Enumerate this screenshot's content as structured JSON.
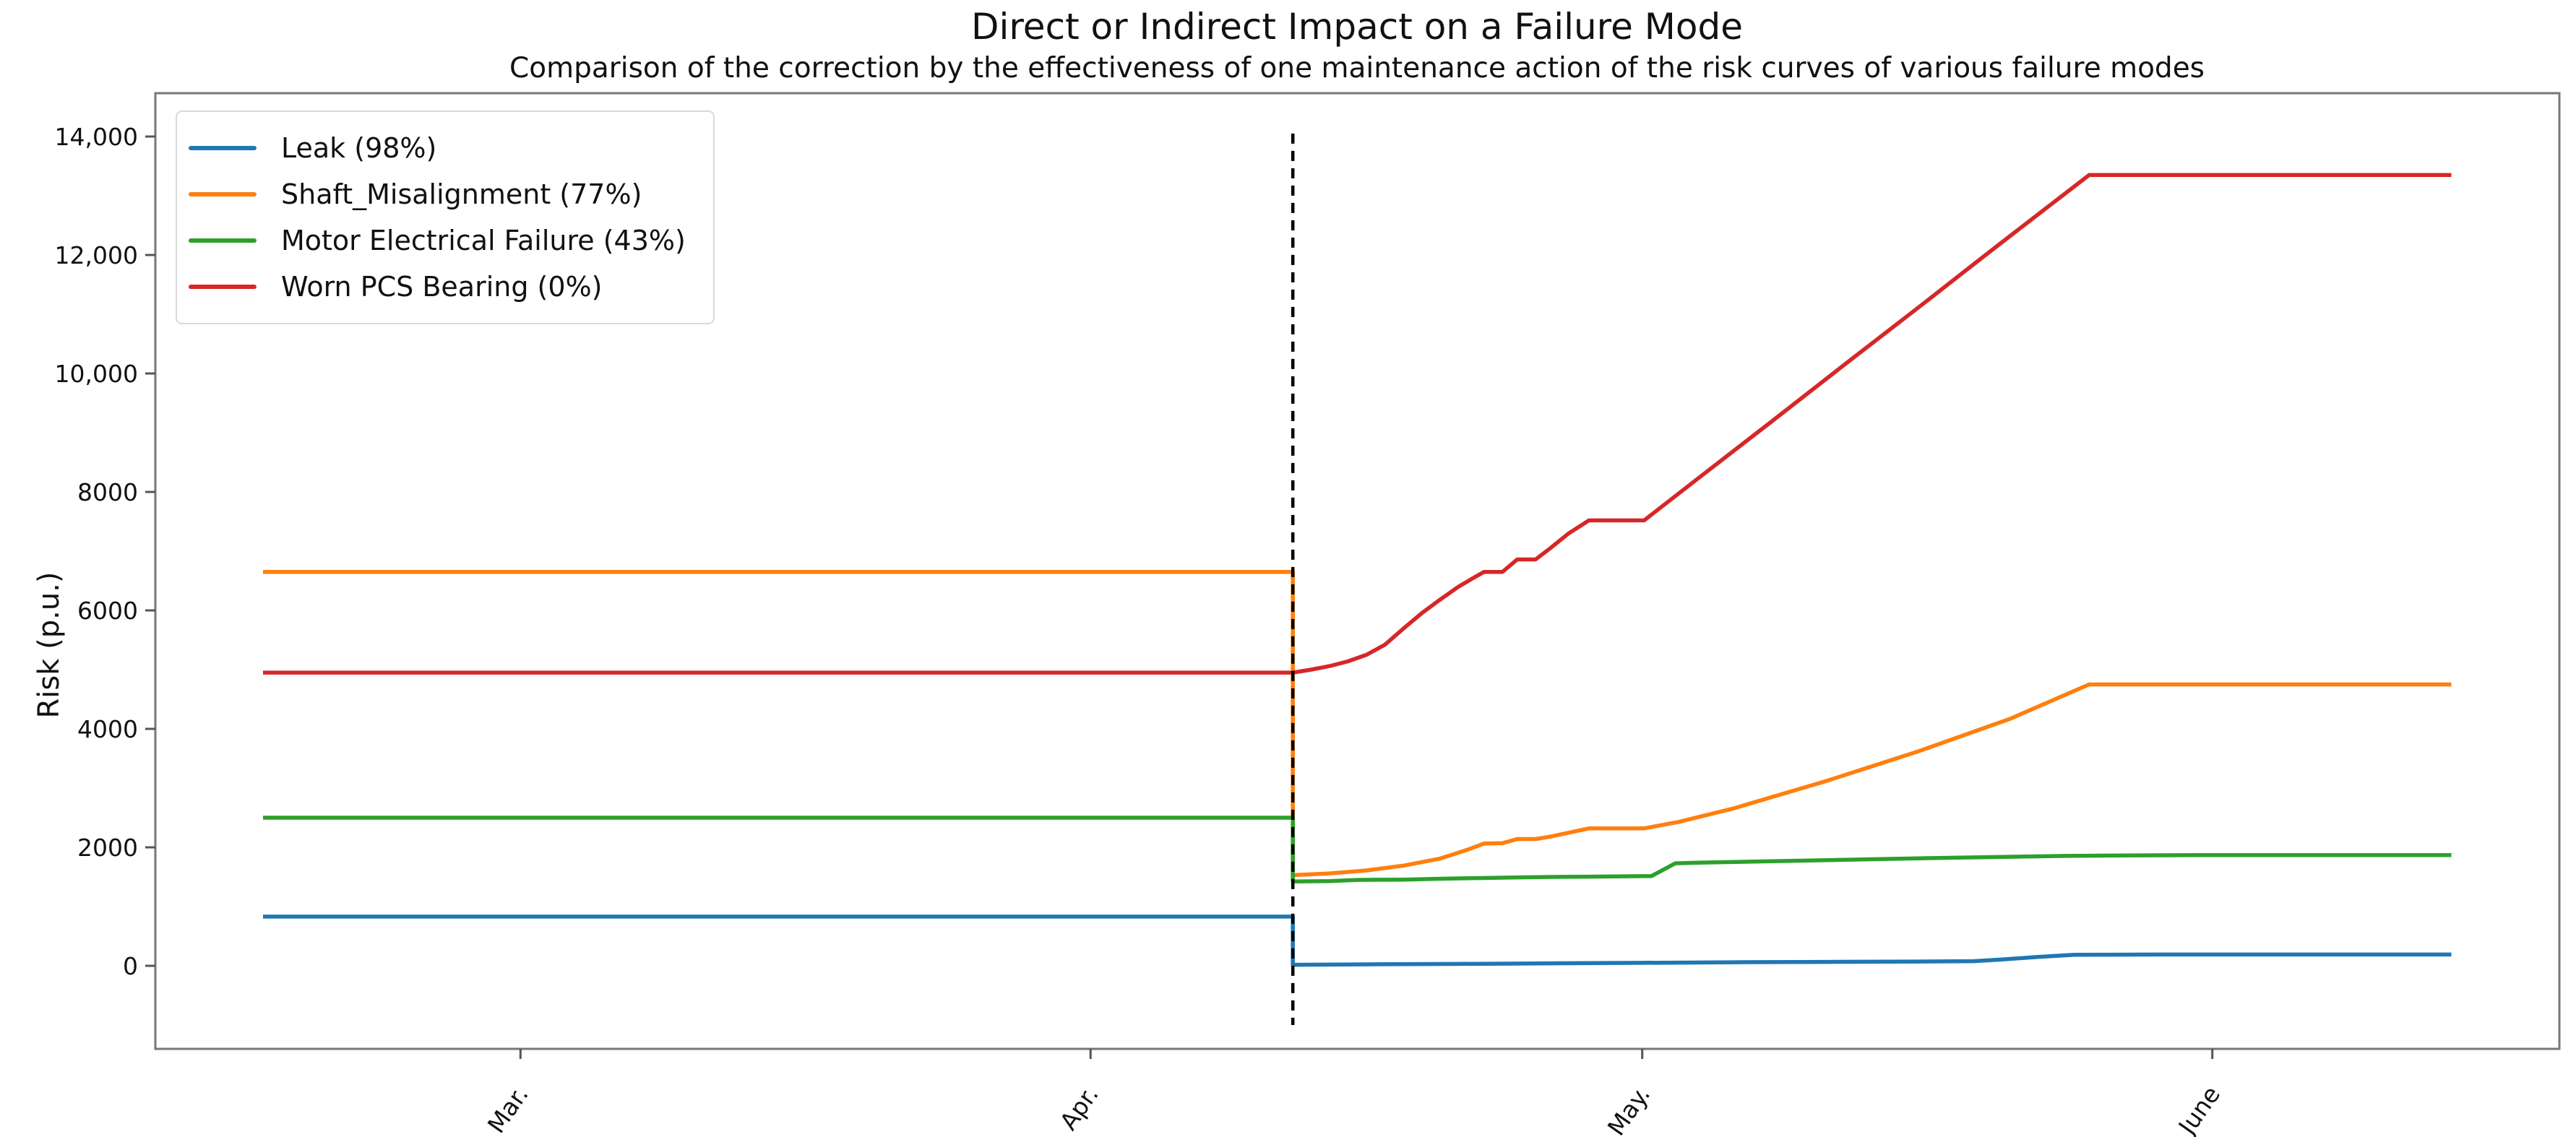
{
  "chart": {
    "title": "Direct or Indirect Impact on a Failure Mode",
    "subtitle": "Comparison of the correction by the effectiveness of one maintenance action of the risk curves of various failure modes",
    "ylabel": "Risk (p.u.)"
  },
  "chart_data": {
    "type": "line",
    "title": "Direct or Indirect Impact on a Failure Mode",
    "subtitle": "Comparison of the correction by the effectiveness of one maintenance action of the risk curves of various failure modes",
    "xlabel": "",
    "ylabel": "Risk (p.u.)",
    "grid": false,
    "legend_position": "upper left",
    "x_unit": "days (day 0 = mid-February, data ends mid-June)",
    "xlim": [
      -6,
      125
    ],
    "ylim": [
      -1400,
      14740
    ],
    "x_ticks": [
      {
        "day": 14,
        "label": "Mar."
      },
      {
        "day": 45,
        "label": "Apr."
      },
      {
        "day": 75,
        "label": "May."
      },
      {
        "day": 106,
        "label": "June"
      }
    ],
    "y_ticks": [
      {
        "value": 0,
        "label": "0"
      },
      {
        "value": 2000,
        "label": "2000"
      },
      {
        "value": 4000,
        "label": "4000"
      },
      {
        "value": 6000,
        "label": "6000"
      },
      {
        "value": 8000,
        "label": "8000"
      },
      {
        "value": 10000,
        "label": "10,000"
      },
      {
        "value": 12000,
        "label": "12,000"
      },
      {
        "value": 14000,
        "label": "14,000"
      }
    ],
    "maintenance_event": {
      "day": 56,
      "approx_date": "April 12",
      "line_style": "dashed",
      "color": "#000000",
      "value_span": [
        -1000,
        14050
      ]
    },
    "series": [
      {
        "name": "Leak (98%)",
        "effectiveness_pct": 98,
        "color": "#1f77b4",
        "points": [
          [
            0,
            830
          ],
          [
            56,
            830
          ],
          [
            56,
            17
          ],
          [
            60,
            24
          ],
          [
            65,
            32
          ],
          [
            70,
            42
          ],
          [
            75,
            50
          ],
          [
            80,
            60
          ],
          [
            85,
            66
          ],
          [
            90,
            72
          ],
          [
            93,
            78
          ],
          [
            94.5,
            105
          ],
          [
            96.5,
            150
          ],
          [
            98.5,
            185
          ],
          [
            103,
            190
          ],
          [
            119,
            190
          ]
        ]
      },
      {
        "name": "Shaft_Misalignment (77%)",
        "effectiveness_pct": 77,
        "color": "#ff7f0e",
        "points": [
          [
            0,
            6650
          ],
          [
            56,
            6650
          ],
          [
            56,
            1530
          ],
          [
            58,
            1560
          ],
          [
            60,
            1610
          ],
          [
            62,
            1690
          ],
          [
            64,
            1810
          ],
          [
            65.5,
            1960
          ],
          [
            66.4,
            2065
          ],
          [
            67.4,
            2070
          ],
          [
            68.2,
            2140
          ],
          [
            69.2,
            2140
          ],
          [
            70,
            2180
          ],
          [
            72.1,
            2320
          ],
          [
            75.1,
            2320
          ],
          [
            77,
            2430
          ],
          [
            80,
            2660
          ],
          [
            85,
            3120
          ],
          [
            90,
            3620
          ],
          [
            95,
            4170
          ],
          [
            99.3,
            4750
          ],
          [
            119,
            4750
          ]
        ]
      },
      {
        "name": "Motor Electrical Failure (43%)",
        "effectiveness_pct": 43,
        "color": "#2ca02c",
        "points": [
          [
            0,
            2500
          ],
          [
            56,
            2500
          ],
          [
            56,
            1425
          ],
          [
            58,
            1430
          ],
          [
            59.5,
            1450
          ],
          [
            62,
            1455
          ],
          [
            64,
            1470
          ],
          [
            66,
            1480
          ],
          [
            68,
            1490
          ],
          [
            70,
            1500
          ],
          [
            72,
            1505
          ],
          [
            75.5,
            1515
          ],
          [
            76.8,
            1730
          ],
          [
            78,
            1740
          ],
          [
            82,
            1765
          ],
          [
            86,
            1790
          ],
          [
            90,
            1815
          ],
          [
            94,
            1835
          ],
          [
            98,
            1855
          ],
          [
            102,
            1865
          ],
          [
            106,
            1870
          ],
          [
            119,
            1870
          ]
        ]
      },
      {
        "name": "Worn PCS Bearing (0%)",
        "effectiveness_pct": 0,
        "color": "#d62728",
        "points": [
          [
            0,
            4950
          ],
          [
            56,
            4950
          ],
          [
            57,
            5000
          ],
          [
            58,
            5060
          ],
          [
            59,
            5140
          ],
          [
            60,
            5250
          ],
          [
            61,
            5420
          ],
          [
            62,
            5690
          ],
          [
            63,
            5950
          ],
          [
            64,
            6180
          ],
          [
            65,
            6400
          ],
          [
            66,
            6580
          ],
          [
            66.4,
            6650
          ],
          [
            67.4,
            6650
          ],
          [
            68.2,
            6860
          ],
          [
            69.2,
            6860
          ],
          [
            70,
            7050
          ],
          [
            71,
            7300
          ],
          [
            72.1,
            7520
          ],
          [
            75.1,
            7520
          ],
          [
            78,
            8220
          ],
          [
            82,
            9180
          ],
          [
            86,
            10150
          ],
          [
            90,
            11110
          ],
          [
            94,
            12080
          ],
          [
            97,
            12800
          ],
          [
            99.3,
            13350
          ],
          [
            119,
            13350
          ]
        ]
      }
    ]
  }
}
